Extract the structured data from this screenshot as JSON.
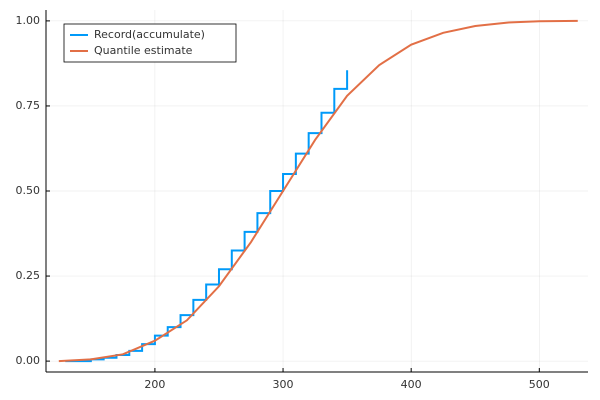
{
  "chart_data": {
    "type": "line",
    "xlim": [
      115,
      538
    ],
    "ylim": [
      -0.032,
      1.032
    ],
    "xticks": [
      200,
      300,
      400,
      500
    ],
    "yticks": [
      {
        "value": 0,
        "label": "0.00"
      },
      {
        "value": 0.25,
        "label": "0.25"
      },
      {
        "value": 0.5,
        "label": "0.50"
      },
      {
        "value": 0.75,
        "label": "0.75"
      },
      {
        "value": 1,
        "label": "1.00"
      }
    ],
    "grid": true,
    "legend": "top-left",
    "series": [
      {
        "name": "Record(accumulate)",
        "color": "#009af9",
        "step": "post",
        "x": [
          130,
          150,
          160,
          170,
          180,
          190,
          200,
          210,
          220,
          230,
          240,
          250,
          260,
          270,
          280,
          290,
          300,
          310,
          320,
          330,
          340,
          350
        ],
        "values": [
          0.0,
          0.005,
          0.01,
          0.018,
          0.03,
          0.05,
          0.075,
          0.1,
          0.135,
          0.18,
          0.225,
          0.27,
          0.325,
          0.38,
          0.435,
          0.5,
          0.55,
          0.61,
          0.67,
          0.73,
          0.8,
          0.855
        ]
      },
      {
        "name": "Quantile estimate",
        "color": "#e26f46",
        "x": [
          125,
          150,
          175,
          200,
          225,
          250,
          275,
          300,
          325,
          350,
          375,
          400,
          425,
          450,
          475,
          500,
          530
        ],
        "values": [
          0.0,
          0.005,
          0.02,
          0.06,
          0.12,
          0.22,
          0.35,
          0.5,
          0.65,
          0.78,
          0.87,
          0.93,
          0.965,
          0.985,
          0.995,
          0.999,
          1.0
        ]
      }
    ]
  }
}
